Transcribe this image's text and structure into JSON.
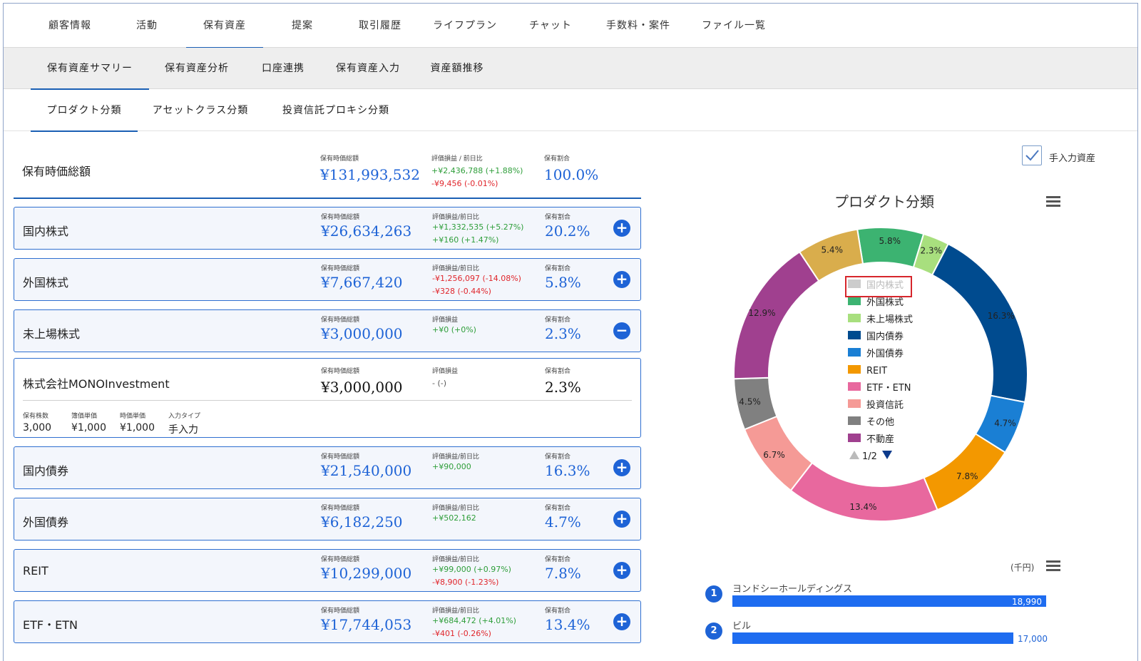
{
  "top_tabs": [
    "顧客情報",
    "活動",
    "保有資産",
    "提案",
    "取引履歴",
    "ライフプラン",
    "チャット",
    "手数料・案件",
    "ファイル一覧"
  ],
  "sub_tabs": [
    "保有資産サマリー",
    "保有資産分析",
    "口座連携",
    "保有資産入力",
    "資産額推移"
  ],
  "third_tabs": [
    "プロダクト分類",
    "アセットクラス分類",
    "投資信託プロキシ分類"
  ],
  "total": {
    "title": "保有時価総額",
    "value_label": "保有時価総額",
    "value": "¥131,993,532",
    "pl_label": "評価損益 / 前日比",
    "pl": "+¥2,436,788 (+1.88%)",
    "day": "-¥9,456 (-0.01%)",
    "ratio_label": "保有割合",
    "ratio": "100.0%"
  },
  "cards": [
    {
      "name": "国内株式",
      "value_label": "保有時価総額",
      "value": "¥26,634,263",
      "pl_label": "評価損益/前日比",
      "pl": "+¥1,332,535 (+5.27%)",
      "pl_color": "green",
      "day": "+¥160 (+1.47%)",
      "day_color": "green",
      "ratio_label": "保有割合",
      "ratio": "20.2%",
      "btn": "+"
    },
    {
      "name": "外国株式",
      "value_label": "保有時価総額",
      "value": "¥7,667,420",
      "pl_label": "評価損益/前日比",
      "pl": "-¥1,256,097 (-14.08%)",
      "pl_color": "red",
      "day": "-¥328 (-0.44%)",
      "day_color": "red",
      "ratio_label": "保有割合",
      "ratio": "5.8%",
      "btn": "+"
    },
    {
      "name": "未上場株式",
      "value_label": "保有時価総額",
      "value": "¥3,000,000",
      "pl_label": "評価損益",
      "pl": "+¥0 (+0%)",
      "pl_color": "green",
      "day": "",
      "day_color": "green",
      "ratio_label": "保有割合",
      "ratio": "2.3%",
      "btn": "−"
    },
    {
      "name": "国内債券",
      "value_label": "保有時価総額",
      "value": "¥21,540,000",
      "pl_label": "評価損益/前日比",
      "pl": "+¥90,000",
      "pl_color": "green",
      "day": "",
      "day_color": "green",
      "ratio_label": "保有割合",
      "ratio": "16.3%",
      "btn": "+"
    },
    {
      "name": "外国債券",
      "value_label": "保有時価総額",
      "value": "¥6,182,250",
      "pl_label": "評価損益/前日比",
      "pl": "+¥502,162",
      "pl_color": "green",
      "day": "",
      "day_color": "green",
      "ratio_label": "保有割合",
      "ratio": "4.7%",
      "btn": "+"
    },
    {
      "name": "REIT",
      "value_label": "保有時価総額",
      "value": "¥10,299,000",
      "pl_label": "評価損益/前日比",
      "pl": "+¥99,000 (+0.97%)",
      "pl_color": "green",
      "day": "-¥8,900 (-1.23%)",
      "day_color": "red",
      "ratio_label": "保有割合",
      "ratio": "7.8%",
      "btn": "+"
    },
    {
      "name": "ETF・ETN",
      "value_label": "保有時価総額",
      "value": "¥17,744,053",
      "pl_label": "評価損益/前日比",
      "pl": "+¥684,472 (+4.01%)",
      "pl_color": "green",
      "day": "-¥401 (-0.26%)",
      "day_color": "red",
      "ratio_label": "保有割合",
      "ratio": "13.4%",
      "btn": "+"
    }
  ],
  "detail": {
    "name": "株式会社MONOInvestment",
    "value_label": "保有時価総額",
    "value": "¥3,000,000",
    "pl_label": "評価損益",
    "pl": "- (-)",
    "ratio_label": "保有割合",
    "ratio": "2.3%",
    "headers": [
      "保有株数",
      "簿価単価",
      "時価単価",
      "入力タイプ"
    ],
    "values": [
      "3,000",
      "¥1,000",
      "¥1,000",
      "手入力"
    ]
  },
  "manual_asset_label": "手入力資産",
  "chart_data": {
    "type": "pie",
    "title": "プロダクト分類",
    "series": [
      {
        "name": "国内株式",
        "percent": 20.2,
        "color": "#d9d9d9",
        "hidden": true
      },
      {
        "name": "外国株式",
        "percent": 5.8,
        "color": "#3cb371"
      },
      {
        "name": "未上場株式",
        "percent": 2.3,
        "color": "#a8df7e"
      },
      {
        "name": "国内債券",
        "percent": 16.3,
        "color": "#004b8f"
      },
      {
        "name": "外国債券",
        "percent": 4.7,
        "color": "#1a7fd4"
      },
      {
        "name": "REIT",
        "percent": 7.8,
        "color": "#f39800"
      },
      {
        "name": "ETF・ETN",
        "percent": 13.4,
        "color": "#e8689e"
      },
      {
        "name": "投資信託",
        "percent": 6.7,
        "color": "#f59a96"
      },
      {
        "name": "その他",
        "percent": 4.5,
        "color": "#808080"
      },
      {
        "name": "不動産",
        "percent": 12.9,
        "color": "#a0408f"
      },
      {
        "name": "",
        "percent": 5.4,
        "color": "#d9ad4c"
      }
    ],
    "legend_page": "1/2"
  },
  "ranking": {
    "unit": "(千円)",
    "items": [
      {
        "rank": "1",
        "name": "ヨンドシーホールディングス",
        "value": 18990,
        "label": "18,990"
      },
      {
        "rank": "2",
        "name": "ビル",
        "value": 17000,
        "label": "17,000"
      }
    ]
  }
}
